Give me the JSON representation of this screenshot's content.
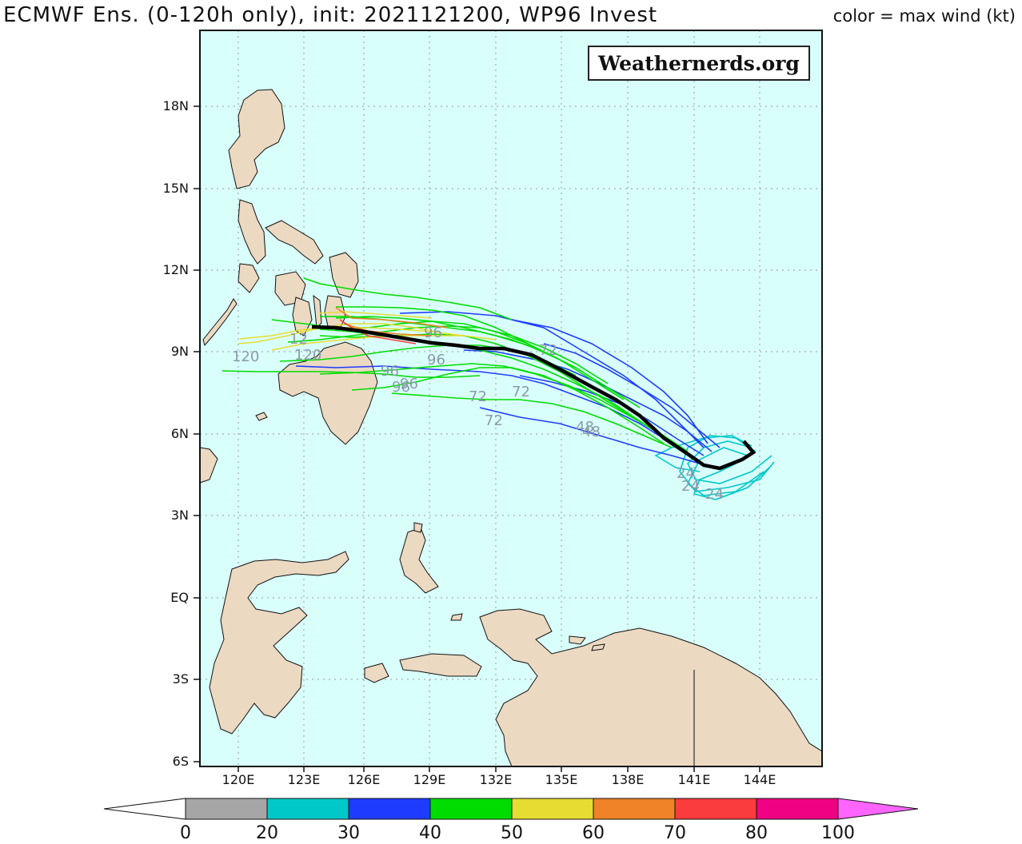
{
  "header": {
    "title": "ECMWF Ens. (0-120h only), init: 2021121200, WP96 Invest",
    "legend_note": "color = max wind (kt)"
  },
  "watermark": "Weathernerds.org",
  "axes": {
    "y_ticks": [
      "18N",
      "15N",
      "12N",
      "9N",
      "6N",
      "3N",
      "EQ",
      "3S",
      "6S"
    ],
    "x_ticks": [
      "120E",
      "123E",
      "126E",
      "129E",
      "132E",
      "135E",
      "138E",
      "141E",
      "144E"
    ]
  },
  "colorbar": {
    "labels": [
      "0",
      "20",
      "30",
      "40",
      "50",
      "60",
      "70",
      "80",
      "100"
    ],
    "colors": [
      "#a6a6a6",
      "#00c8c8",
      "#1e3cff",
      "#00dc00",
      "#e6dc32",
      "#f08228",
      "#fa3c3c",
      "#f00082",
      "#ff64ff"
    ]
  },
  "colors": {
    "ocean": "#d9fffb",
    "land": "#ecd9c2",
    "mean_track": "#000000"
  },
  "hour_labels": [
    "24",
    "24",
    "24",
    "48",
    "48",
    "72",
    "72",
    "72",
    "72",
    "96",
    "96",
    "96",
    "96",
    "96",
    "120",
    "120",
    "12"
  ]
}
